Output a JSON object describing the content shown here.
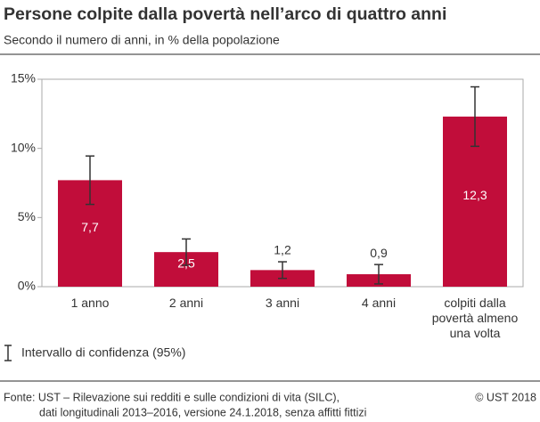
{
  "chart_data": {
    "type": "bar",
    "title": "Persone colpite dalla povertà nell’arco di quattro anni",
    "subtitle": "Secondo il numero di anni, in % della popolazione",
    "categories": [
      "1 anno",
      "2 anni",
      "3 anni",
      "4 anni",
      "colpiti dalla povertà almeno una volta"
    ],
    "values": [
      7.7,
      2.5,
      1.2,
      0.9,
      12.3
    ],
    "value_labels": [
      "7,7",
      "2,5",
      "1,2",
      "0,9",
      "12,3"
    ],
    "errors": [
      1.75,
      0.95,
      0.6,
      0.7,
      2.15
    ],
    "color": "#c10d3a",
    "ylim": [
      0,
      15
    ],
    "yticks": [
      {
        "value": 0,
        "label": "0%"
      },
      {
        "value": 5,
        "label": "5%"
      },
      {
        "value": 10,
        "label": "10%"
      },
      {
        "value": 15,
        "label": "15%"
      }
    ],
    "legend": {
      "label": "Intervallo di confidenza (95%)"
    },
    "source": [
      "Fonte: UST – Rilevazione sui redditi e sulle condizioni di vita (SILC),",
      "dati longitudinali 2013–2016, versione 24.1.2018, senza affitti fittizi"
    ],
    "copyright": "© UST 2018"
  }
}
